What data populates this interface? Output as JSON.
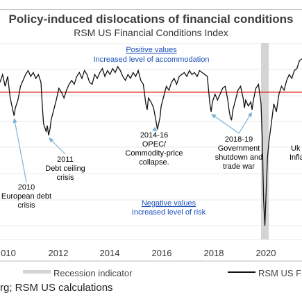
{
  "header": {
    "title": "Policy-induced dislocations of financial conditions",
    "subtitle": "RSM US Financial Conditions Index"
  },
  "notes": {
    "positive_title": "Positive values",
    "positive_sub": "Increased level of accommodation",
    "negative_title": "Negative values",
    "negative_sub": "Increased level of risk"
  },
  "legend": {
    "recession": "Recession indicator",
    "series": "RSM US F"
  },
  "source": "rg; RSM US calculations",
  "colors": {
    "series_line": "#111111",
    "zero_line": "#e0261c",
    "recession_band": "#d4d4d4",
    "accent_text": "#1a4fb8",
    "arrow": "#7bb3d8"
  },
  "chart_data": {
    "type": "line",
    "x_ticks": [
      "010",
      "2012",
      "2014",
      "2016",
      "2018",
      "2020"
    ],
    "xlim": [
      2009.9,
      2021.7
    ],
    "ylim": [
      -7.5,
      2.5
    ],
    "zero_line": 0,
    "recession": [
      [
        2020.1,
        2020.4
      ]
    ],
    "series": [
      {
        "name": "RSM US F",
        "points": [
          [
            2009.9,
            0.5
          ],
          [
            2010.0,
            0.9
          ],
          [
            2010.1,
            0.3
          ],
          [
            2010.2,
            0.8
          ],
          [
            2010.3,
            -0.3
          ],
          [
            2010.4,
            -0.9
          ],
          [
            2010.45,
            -1.2
          ],
          [
            2010.5,
            -0.8
          ],
          [
            2010.6,
            -0.4
          ],
          [
            2010.7,
            0.3
          ],
          [
            2010.8,
            0.6
          ],
          [
            2010.9,
            0.9
          ],
          [
            2011.0,
            1.1
          ],
          [
            2011.1,
            0.8
          ],
          [
            2011.2,
            1.0
          ],
          [
            2011.3,
            0.7
          ],
          [
            2011.4,
            0.9
          ],
          [
            2011.5,
            0.5
          ],
          [
            2011.55,
            -0.6
          ],
          [
            2011.6,
            -1.6
          ],
          [
            2011.7,
            -2.0
          ],
          [
            2011.75,
            -1.7
          ],
          [
            2011.8,
            -2.2
          ],
          [
            2011.85,
            -1.9
          ],
          [
            2011.9,
            -1.4
          ],
          [
            2012.0,
            -0.9
          ],
          [
            2012.1,
            -0.4
          ],
          [
            2012.2,
            0.2
          ],
          [
            2012.3,
            0.0
          ],
          [
            2012.4,
            -0.3
          ],
          [
            2012.5,
            0.1
          ],
          [
            2012.6,
            0.4
          ],
          [
            2012.7,
            0.6
          ],
          [
            2012.8,
            0.4
          ],
          [
            2012.9,
            0.8
          ],
          [
            2013.0,
            1.0
          ],
          [
            2013.1,
            0.7
          ],
          [
            2013.2,
            1.1
          ],
          [
            2013.3,
            0.9
          ],
          [
            2013.4,
            0.5
          ],
          [
            2013.5,
            0.4
          ],
          [
            2013.6,
            0.9
          ],
          [
            2013.7,
            0.7
          ],
          [
            2013.8,
            1.0
          ],
          [
            2013.9,
            1.2
          ],
          [
            2014.0,
            0.8
          ],
          [
            2014.1,
            1.1
          ],
          [
            2014.2,
            0.9
          ],
          [
            2014.3,
            1.2
          ],
          [
            2014.4,
            1.0
          ],
          [
            2014.5,
            1.3
          ],
          [
            2014.6,
            1.1
          ],
          [
            2014.7,
            0.8
          ],
          [
            2014.8,
            0.6
          ],
          [
            2014.9,
            0.9
          ],
          [
            2015.0,
            0.7
          ],
          [
            2015.1,
            1.0
          ],
          [
            2015.2,
            0.8
          ],
          [
            2015.3,
            1.1
          ],
          [
            2015.4,
            0.6
          ],
          [
            2015.5,
            0.4
          ],
          [
            2015.6,
            -0.6
          ],
          [
            2015.65,
            -0.9
          ],
          [
            2015.7,
            -0.3
          ],
          [
            2015.8,
            -0.5
          ],
          [
            2015.9,
            -0.8
          ],
          [
            2016.0,
            -1.5
          ],
          [
            2016.05,
            -1.9
          ],
          [
            2016.1,
            -1.6
          ],
          [
            2016.15,
            -1.3
          ],
          [
            2016.2,
            -0.7
          ],
          [
            2016.3,
            -0.2
          ],
          [
            2016.4,
            0.3
          ],
          [
            2016.5,
            0.1
          ],
          [
            2016.6,
            0.5
          ],
          [
            2016.7,
            0.7
          ],
          [
            2016.8,
            0.4
          ],
          [
            2016.9,
            0.8
          ],
          [
            2017.0,
            0.9
          ],
          [
            2017.1,
            1.0
          ],
          [
            2017.2,
            0.8
          ],
          [
            2017.3,
            1.1
          ],
          [
            2017.4,
            0.9
          ],
          [
            2017.5,
            1.0
          ],
          [
            2017.6,
            0.8
          ],
          [
            2017.7,
            1.1
          ],
          [
            2017.8,
            1.0
          ],
          [
            2017.9,
            0.9
          ],
          [
            2018.0,
            0.8
          ],
          [
            2018.1,
            -0.6
          ],
          [
            2018.15,
            -1.0
          ],
          [
            2018.2,
            -0.5
          ],
          [
            2018.3,
            -0.1
          ],
          [
            2018.4,
            -0.4
          ],
          [
            2018.5,
            -0.1
          ],
          [
            2018.6,
            0.2
          ],
          [
            2018.7,
            0.3
          ],
          [
            2018.8,
            -0.4
          ],
          [
            2018.85,
            -0.9
          ],
          [
            2018.9,
            -1.3
          ],
          [
            2018.95,
            -1.4
          ],
          [
            2019.0,
            -0.9
          ],
          [
            2019.1,
            -0.4
          ],
          [
            2019.2,
            0.1
          ],
          [
            2019.3,
            0.3
          ],
          [
            2019.4,
            -0.3
          ],
          [
            2019.45,
            -0.8
          ],
          [
            2019.5,
            -0.4
          ],
          [
            2019.6,
            -0.7
          ],
          [
            2019.7,
            -0.5
          ],
          [
            2019.75,
            -0.9
          ],
          [
            2019.8,
            -0.4
          ],
          [
            2019.9,
            0.2
          ],
          [
            2020.0,
            0.4
          ],
          [
            2020.1,
            -0.6
          ],
          [
            2020.15,
            -2.5
          ],
          [
            2020.2,
            -5.5
          ],
          [
            2020.25,
            -6.8
          ],
          [
            2020.3,
            -5.0
          ],
          [
            2020.35,
            -3.4
          ],
          [
            2020.4,
            -2.6
          ],
          [
            2020.5,
            -1.6
          ],
          [
            2020.6,
            -0.6
          ],
          [
            2020.7,
            -1.0
          ],
          [
            2020.8,
            -0.1
          ],
          [
            2020.9,
            0.3
          ],
          [
            2021.0,
            0.1
          ],
          [
            2021.1,
            0.6
          ],
          [
            2021.2,
            0.9
          ],
          [
            2021.3,
            0.7
          ],
          [
            2021.4,
            1.1
          ],
          [
            2021.5,
            1.2
          ],
          [
            2021.6,
            1.6
          ],
          [
            2021.7,
            1.7
          ]
        ]
      }
    ]
  },
  "annotations": [
    {
      "lines": [
        "2010",
        "European debt",
        "crisis"
      ]
    },
    {
      "lines": [
        "2011",
        "Debt ceiling",
        "crisis"
      ]
    },
    {
      "lines": [
        "2014-16",
        "OPEC/",
        "Commodity-price",
        "collapse."
      ]
    },
    {
      "lines": [
        "2018-19",
        "Government",
        "shutdown and",
        "trade war"
      ]
    },
    {
      "lines": [
        "Uk",
        "Infla"
      ]
    }
  ]
}
